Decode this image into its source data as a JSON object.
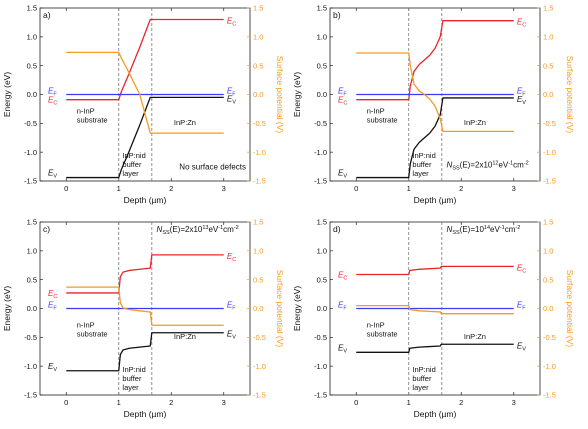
{
  "colors": {
    "ec": "#e8262a",
    "ev": "#111111",
    "ef": "#3b3bf0",
    "sp": "#f59a23",
    "spaxis": "#f59a23",
    "vline": "#777777"
  },
  "chart_data": [
    {
      "type": "line",
      "panel_label": "a)",
      "xlabel": "Depth (µm)",
      "ylabel": "Energy (eV)",
      "y2label": "Surface potential (V)",
      "xlim": [
        -0.5,
        3.5
      ],
      "ylim": [
        -1.5,
        1.5
      ],
      "y2lim": [
        -1.5,
        1.5
      ],
      "xticks": [
        "0",
        "1",
        "2",
        "3"
      ],
      "yticks": [
        "-1.5",
        "-1.0",
        "-0.5",
        "0.0",
        "0.5",
        "1.0",
        "1.5"
      ],
      "y2ticks": [
        "-1.5",
        "-1.0",
        "-0.5",
        "0.0",
        "0.5",
        "1.0",
        "1.5"
      ],
      "boundaries": [
        1.0,
        1.63
      ],
      "annotation": "No surface defects",
      "labels": {
        "ec": "E",
        "ec_sub": "C",
        "ev": "E",
        "ev_sub": "V",
        "ef": "E",
        "ef_sub": "F",
        "region1": [
          "n-InP",
          "substrate"
        ],
        "region2": [
          "InP:nid",
          "buffer",
          "layer"
        ],
        "region3": [
          "InP:Zn"
        ]
      },
      "series": [
        {
          "key": "ec",
          "x": [
            0,
            1.0,
            1.05,
            1.2,
            1.4,
            1.6,
            3.0
          ],
          "y": [
            -0.09,
            -0.09,
            0.05,
            0.37,
            0.82,
            1.3,
            1.3
          ]
        },
        {
          "key": "ev",
          "x": [
            0,
            1.0,
            1.05,
            1.2,
            1.4,
            1.6,
            3.0
          ],
          "y": [
            -1.44,
            -1.44,
            -1.3,
            -0.98,
            -0.53,
            -0.05,
            -0.05
          ]
        },
        {
          "key": "ef",
          "x": [
            0,
            3.0
          ],
          "y": [
            0,
            0
          ]
        },
        {
          "key": "sp",
          "axis": "y2",
          "x": [
            0,
            1.0,
            1.05,
            1.2,
            1.4,
            1.6,
            3.0
          ],
          "y": [
            0.73,
            0.73,
            0.63,
            0.37,
            0.0,
            -0.67,
            -0.67
          ]
        }
      ]
    },
    {
      "type": "line",
      "panel_label": "b)",
      "xlabel": "Depth (µm)",
      "ylabel": "Energy (eV)",
      "y2label": "Surface potential (V)",
      "xlim": [
        -0.5,
        3.5
      ],
      "ylim": [
        -1.5,
        1.5
      ],
      "y2lim": [
        -1.5,
        1.5
      ],
      "xticks": [
        "0",
        "1",
        "2",
        "3"
      ],
      "yticks": [
        "-1.5",
        "-1.0",
        "-0.5",
        "0.0",
        "0.5",
        "1.0",
        "1.5"
      ],
      "y2ticks": [
        "-1.5",
        "-1.0",
        "-0.5",
        "0.0",
        "0.5",
        "1.0",
        "1.5"
      ],
      "boundaries": [
        1.0,
        1.63
      ],
      "annotation": "",
      "nss": {
        "prefix": "N",
        "sub": "SS",
        "middle": "(E)=2x10",
        "exp": "12",
        "unit": "eV",
        "unit_exp": "-1",
        "unit2": "cm",
        "unit2_exp": "-2"
      },
      "labels": {
        "ec": "E",
        "ec_sub": "C",
        "ev": "E",
        "ev_sub": "V",
        "ef": "E",
        "ef_sub": "F",
        "region1": [
          "n-InP",
          "substrate"
        ],
        "region2": [
          "InP:nid",
          "buffer",
          "layer"
        ],
        "region3": [
          "InP:Zn"
        ]
      },
      "series": [
        {
          "key": "ec",
          "x": [
            0,
            1.0,
            1.03,
            1.1,
            1.2,
            1.3,
            1.4,
            1.5,
            1.6,
            1.65,
            3.0
          ],
          "y": [
            -0.09,
            -0.09,
            0.15,
            0.4,
            0.52,
            0.6,
            0.68,
            0.8,
            1.0,
            1.28,
            1.28
          ]
        },
        {
          "key": "ev",
          "x": [
            0,
            1.0,
            1.03,
            1.1,
            1.2,
            1.3,
            1.4,
            1.5,
            1.6,
            1.65,
            3.0
          ],
          "y": [
            -1.44,
            -1.44,
            -1.2,
            -0.95,
            -0.83,
            -0.75,
            -0.67,
            -0.55,
            -0.35,
            -0.06,
            -0.06
          ]
        },
        {
          "key": "ef",
          "x": [
            0,
            3.0
          ],
          "y": [
            0,
            0
          ]
        },
        {
          "key": "sp",
          "axis": "y2",
          "x": [
            0,
            1.0,
            1.03,
            1.1,
            1.2,
            1.3,
            1.4,
            1.5,
            1.6,
            1.65,
            3.0
          ],
          "y": [
            0.72,
            0.72,
            0.5,
            0.18,
            0.06,
            0.0,
            -0.08,
            -0.2,
            -0.42,
            -0.64,
            -0.64
          ]
        }
      ]
    },
    {
      "type": "line",
      "panel_label": "c)",
      "xlabel": "Depth (µm)",
      "ylabel": "Energy (eV)",
      "y2label": "Surface potential (V)",
      "xlim": [
        -0.5,
        3.5
      ],
      "ylim": [
        -1.5,
        1.5
      ],
      "y2lim": [
        -1.5,
        1.5
      ],
      "xticks": [
        "0",
        "1",
        "2",
        "3"
      ],
      "yticks": [
        "-1.5",
        "-1.0",
        "-0.5",
        "0.0",
        "0.5",
        "1.0",
        "1.5"
      ],
      "y2ticks": [
        "-1.5",
        "-1.0",
        "-0.5",
        "0.0",
        "0.5",
        "1.0",
        "1.5"
      ],
      "boundaries": [
        1.0,
        1.63
      ],
      "annotation": "",
      "nss": {
        "prefix": "N",
        "sub": "SS",
        "middle": "(E)=2x10",
        "exp": "13",
        "unit": "eV",
        "unit_exp": "-1",
        "unit2": "cm",
        "unit2_exp": "-2"
      },
      "labels": {
        "ec": "E",
        "ec_sub": "C",
        "ev": "E",
        "ev_sub": "V",
        "ef": "E",
        "ef_sub": "F",
        "region1": [
          "n-InP",
          "substrate"
        ],
        "region2": [
          "InP:nid",
          "buffer",
          "layer"
        ],
        "region3": [
          "InP:Zn"
        ]
      },
      "series": [
        {
          "key": "ec",
          "x": [
            0,
            1.0,
            1.03,
            1.08,
            1.2,
            1.4,
            1.6,
            1.63,
            3.0
          ],
          "y": [
            0.27,
            0.27,
            0.55,
            0.63,
            0.66,
            0.68,
            0.7,
            0.93,
            0.93
          ]
        },
        {
          "key": "ev",
          "x": [
            0,
            1.0,
            1.03,
            1.08,
            1.2,
            1.4,
            1.6,
            1.63,
            3.0
          ],
          "y": [
            -1.08,
            -1.08,
            -0.8,
            -0.72,
            -0.69,
            -0.67,
            -0.65,
            -0.42,
            -0.42
          ]
        },
        {
          "key": "ef",
          "x": [
            0,
            3.0
          ],
          "y": [
            0,
            0
          ]
        },
        {
          "key": "sp",
          "axis": "y2",
          "x": [
            0,
            1.0,
            1.03,
            1.08,
            1.2,
            1.4,
            1.6,
            1.63,
            3.0
          ],
          "y": [
            0.37,
            0.37,
            0.1,
            0.01,
            -0.02,
            -0.04,
            -0.06,
            -0.29,
            -0.29
          ]
        }
      ]
    },
    {
      "type": "line",
      "panel_label": "d)",
      "xlabel": "Depth (µm)",
      "ylabel": "Energy (eV)",
      "y2label": "Surface potential (V)",
      "xlim": [
        -0.5,
        3.5
      ],
      "ylim": [
        -1.5,
        1.5
      ],
      "y2lim": [
        -1.5,
        1.5
      ],
      "xticks": [
        "0",
        "1",
        "2",
        "3"
      ],
      "yticks": [
        "-1.5",
        "-1.0",
        "-0.5",
        "0.0",
        "0.5",
        "1.0",
        "1.5"
      ],
      "y2ticks": [
        "-1.5",
        "-1.0",
        "-0.5",
        "0.0",
        "0.5",
        "1.0",
        "1.5"
      ],
      "boundaries": [
        1.0,
        1.63
      ],
      "annotation": "",
      "nss": {
        "prefix": "N",
        "sub": "SS",
        "middle": "(E)=10",
        "exp": "14",
        "unit": "eV",
        "unit_exp": "-1",
        "unit2": "cm",
        "unit2_exp": "-2"
      },
      "labels": {
        "ec": "E",
        "ec_sub": "C",
        "ev": "E",
        "ev_sub": "V",
        "ef": "E",
        "ef_sub": "F",
        "region1": [
          "n-InP",
          "substrate"
        ],
        "region2": [
          "InP:nid",
          "buffer",
          "layer"
        ],
        "region3": [
          "InP:Zn"
        ]
      },
      "series": [
        {
          "key": "ec",
          "x": [
            0,
            1.0,
            1.02,
            1.2,
            1.4,
            1.6,
            1.62,
            3.0
          ],
          "y": [
            0.59,
            0.59,
            0.66,
            0.68,
            0.69,
            0.7,
            0.73,
            0.73
          ]
        },
        {
          "key": "ev",
          "x": [
            0,
            1.0,
            1.02,
            1.2,
            1.4,
            1.6,
            1.62,
            3.0
          ],
          "y": [
            -0.76,
            -0.76,
            -0.69,
            -0.67,
            -0.66,
            -0.65,
            -0.62,
            -0.62
          ]
        },
        {
          "key": "ef",
          "x": [
            0,
            3.0
          ],
          "y": [
            0,
            0
          ]
        },
        {
          "key": "sp",
          "axis": "y2",
          "x": [
            0,
            1.0,
            1.02,
            1.2,
            1.4,
            1.6,
            1.62,
            3.0
          ],
          "y": [
            0.05,
            0.05,
            -0.02,
            -0.04,
            -0.05,
            -0.06,
            -0.09,
            -0.09
          ]
        }
      ]
    }
  ]
}
